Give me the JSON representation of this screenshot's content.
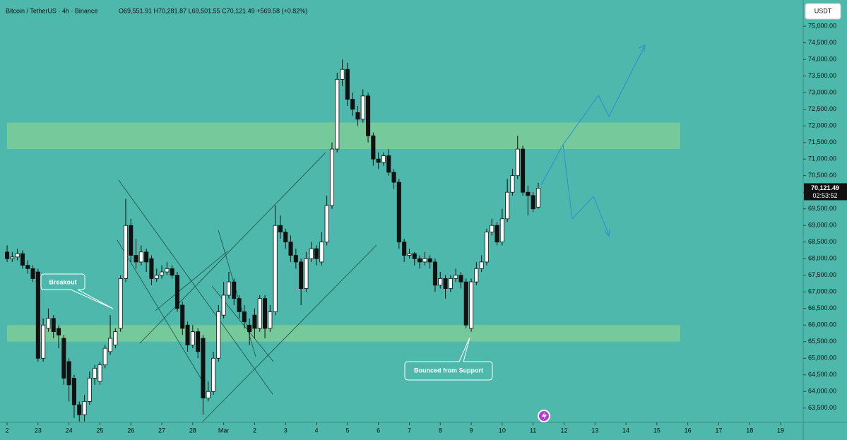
{
  "chart_data": {
    "type": "candlestick",
    "title": "Bitcoin / TetherUS · 4h · Binance",
    "ohlc_legend": "O69,551.91  H70,281.87  L69,501.55  C70,121.49  +569.58 (+0.82%)",
    "currency": "USDT",
    "price_tag": "70,121.49",
    "countdown": "02:53:52",
    "annotations": [
      "Breakout",
      "Bounced from Support"
    ],
    "zones": [
      {
        "low": 71300,
        "high": 72100,
        "color": "#7ccb98"
      },
      {
        "low": 65500,
        "high": 66000,
        "color": "#7ccb98"
      }
    ],
    "up_color": "#ffffff",
    "down_color": "#111111",
    "x": [
      0,
      4,
      8,
      12,
      16,
      20,
      24,
      28,
      32,
      36,
      40,
      44,
      48,
      52,
      56,
      60,
      64,
      68,
      72,
      76,
      80,
      84,
      88,
      92,
      96,
      100,
      104,
      108,
      112,
      116,
      120,
      124,
      128,
      132,
      136,
      140,
      144,
      148,
      152,
      156,
      160,
      164,
      168,
      172,
      176,
      180,
      184,
      188,
      192,
      196,
      200,
      204,
      208,
      212,
      216,
      220,
      224,
      228,
      232,
      236,
      240,
      244,
      248,
      252,
      256,
      260,
      264,
      268,
      272,
      276,
      280,
      284,
      288,
      292,
      296,
      300,
      304,
      308,
      312,
      316,
      320,
      324,
      328,
      332,
      336,
      340,
      344,
      348,
      352,
      356,
      360,
      364,
      368,
      372,
      376,
      380,
      384,
      388,
      392,
      396,
      400,
      404,
      408,
      412
    ],
    "open": [
      68200,
      68000,
      68050,
      68150,
      67800,
      67700,
      67600,
      65000,
      65900,
      66200,
      65900,
      65600,
      64900,
      64400,
      63600,
      63300,
      63700,
      64400,
      64300,
      64800,
      65200,
      65400,
      65900,
      67400,
      69000,
      68100,
      67900,
      68200,
      68000,
      67400,
      67500,
      67600,
      67700,
      67500,
      66600,
      66000,
      65400,
      65800,
      65600,
      63800,
      64000,
      65000,
      66300,
      66900,
      67300,
      66800,
      66400,
      66000,
      66300,
      65900,
      66800,
      65900,
      66400,
      69000,
      68800,
      68500,
      68100,
      67900,
      67100,
      68000,
      68300,
      67900,
      68500,
      69600,
      71300,
      73400,
      73700,
      72800,
      72400,
      72200,
      72900,
      71700,
      71000,
      70900,
      71100,
      70600,
      70300,
      68500,
      68100,
      68150,
      68000,
      67900,
      68000,
      67900,
      67200,
      67400,
      67100,
      67400,
      67500,
      67300,
      65900,
      67300,
      67700,
      67900,
      68800,
      69000,
      68500,
      69200,
      70000,
      70500,
      71300,
      70000,
      69900,
      69551.91
    ],
    "high": [
      68400,
      68200,
      68300,
      68250,
      67950,
      67800,
      67700,
      66200,
      66500,
      66300,
      66000,
      65700,
      65000,
      64500,
      63700,
      63900,
      64600,
      64800,
      64900,
      65400,
      66300,
      65900,
      67500,
      69800,
      69200,
      68600,
      68400,
      68300,
      68100,
      67700,
      67800,
      67900,
      67800,
      67600,
      66700,
      66100,
      66000,
      65900,
      65700,
      64300,
      65200,
      66600,
      67300,
      67600,
      67400,
      66900,
      66600,
      66200,
      66500,
      66900,
      66900,
      66600,
      69600,
      69300,
      68900,
      68700,
      68300,
      68000,
      68200,
      68500,
      68400,
      68800,
      69900,
      71500,
      73600,
      74000,
      73900,
      73000,
      72600,
      73100,
      73000,
      71800,
      71200,
      71200,
      71300,
      70700,
      70400,
      68600,
      68300,
      68200,
      68100,
      68200,
      68100,
      68000,
      67600,
      67500,
      67500,
      67700,
      67600,
      67400,
      67400,
      67900,
      68100,
      68900,
      69200,
      69100,
      69500,
      70400,
      70700,
      71700,
      71400,
      70200,
      70000,
      70281.87
    ],
    "low": [
      67900,
      67900,
      67950,
      67700,
      67550,
      67300,
      64900,
      64900,
      65800,
      65600,
      65300,
      64200,
      63700,
      63200,
      63100,
      63100,
      63600,
      64200,
      64200,
      64700,
      65100,
      65300,
      65800,
      67300,
      67900,
      67700,
      67800,
      67600,
      67200,
      67300,
      67400,
      67500,
      67400,
      66400,
      65700,
      65200,
      65300,
      65000,
      63300,
      63700,
      63900,
      64900,
      66200,
      66800,
      66600,
      66200,
      65900,
      65400,
      65600,
      65800,
      65600,
      65800,
      66300,
      68600,
      68300,
      67900,
      67700,
      66600,
      67000,
      67900,
      67800,
      67800,
      68400,
      69500,
      71200,
      73200,
      72600,
      72300,
      72000,
      72100,
      71500,
      70800,
      70700,
      70800,
      70500,
      70100,
      68300,
      67900,
      68000,
      67800,
      67700,
      67800,
      67700,
      67000,
      67100,
      66800,
      67000,
      67300,
      67100,
      65900,
      65800,
      67200,
      67600,
      67800,
      68700,
      68400,
      68400,
      69100,
      69900,
      70400,
      69900,
      69300,
      69400,
      69501.55
    ],
    "close": [
      68000,
      68050,
      68150,
      67800,
      67700,
      67400,
      65000,
      66000,
      66200,
      65800,
      65700,
      64400,
      64200,
      63600,
      63300,
      63700,
      64400,
      64700,
      64800,
      65300,
      65600,
      65800,
      67400,
      69000,
      68100,
      67900,
      68200,
      67900,
      67400,
      67500,
      67600,
      67700,
      67500,
      66500,
      65900,
      65400,
      65800,
      65200,
      63800,
      64000,
      65000,
      66400,
      66900,
      67300,
      66800,
      66400,
      66100,
      65800,
      65900,
      66800,
      65900,
      66400,
      69000,
      68800,
      68500,
      68100,
      67900,
      67100,
      68000,
      68300,
      68000,
      68500,
      69600,
      71300,
      73400,
      73700,
      72800,
      72500,
      72200,
      72900,
      71700,
      71000,
      70900,
      71100,
      70600,
      70300,
      68500,
      68100,
      68150,
      68000,
      67900,
      68000,
      67900,
      67200,
      67400,
      67100,
      67400,
      67500,
      67300,
      66000,
      67300,
      67700,
      67900,
      68800,
      69000,
      68500,
      69200,
      70000,
      70500,
      71300,
      70000,
      69900,
      69500,
      70121.49
    ],
    "xlim": [
      -5.5,
      617.5
    ],
    "xticks": [
      {
        "value": 0,
        "label": "2"
      },
      {
        "value": 24,
        "label": "23"
      },
      {
        "value": 48,
        "label": "24"
      },
      {
        "value": 72,
        "label": "25"
      },
      {
        "value": 96,
        "label": "26"
      },
      {
        "value": 120,
        "label": "27"
      },
      {
        "value": 144,
        "label": "28"
      },
      {
        "value": 168,
        "label": "Mar"
      },
      {
        "value": 192,
        "label": "2"
      },
      {
        "value": 216,
        "label": "3"
      },
      {
        "value": 240,
        "label": "4"
      },
      {
        "value": 264,
        "label": "5"
      },
      {
        "value": 288,
        "label": "6"
      },
      {
        "value": 312,
        "label": "7"
      },
      {
        "value": 336,
        "label": "8"
      },
      {
        "value": 360,
        "label": "9"
      },
      {
        "value": 384,
        "label": "10"
      },
      {
        "value": 408,
        "label": "11"
      },
      {
        "value": 432,
        "label": "12"
      },
      {
        "value": 456,
        "label": "13"
      },
      {
        "value": 480,
        "label": "14"
      },
      {
        "value": 504,
        "label": "15"
      },
      {
        "value": 528,
        "label": "16"
      },
      {
        "value": 552,
        "label": "17"
      },
      {
        "value": 576,
        "label": "18"
      },
      {
        "value": 600,
        "label": "19"
      }
    ],
    "ylim": [
      63070,
      75790
    ],
    "yticks": [
      {
        "value": 63500,
        "label": "63,500.00"
      },
      {
        "value": 64000,
        "label": "64,000.00"
      },
      {
        "value": 64500,
        "label": "64,500.00"
      },
      {
        "value": 65000,
        "label": "65,000.00"
      },
      {
        "value": 65500,
        "label": "65,500.00"
      },
      {
        "value": 66000,
        "label": "66,000.00"
      },
      {
        "value": 66500,
        "label": "66,500.00"
      },
      {
        "value": 67000,
        "label": "67,000.00"
      },
      {
        "value": 67500,
        "label": "67,500.00"
      },
      {
        "value": 68000,
        "label": "68,000.00"
      },
      {
        "value": 68500,
        "label": "68,500.00"
      },
      {
        "value": 69000,
        "label": "69,000.00"
      },
      {
        "value": 69500,
        "label": "69,500.00"
      },
      {
        "value": 70000,
        "label": "70,000.00"
      },
      {
        "value": 70500,
        "label": "70,500.00"
      },
      {
        "value": 71000,
        "label": "71,000.00"
      },
      {
        "value": 71500,
        "label": "71,500.00"
      },
      {
        "value": 72000,
        "label": "72,000.00"
      },
      {
        "value": 72500,
        "label": "72,500.00"
      },
      {
        "value": 73000,
        "label": "73,000.00"
      },
      {
        "value": 73500,
        "label": "73,500.00"
      },
      {
        "value": 74000,
        "label": "74,000.00"
      },
      {
        "value": 74500,
        "label": "74,500.00"
      },
      {
        "value": 75000,
        "label": "75,000.00"
      }
    ]
  }
}
